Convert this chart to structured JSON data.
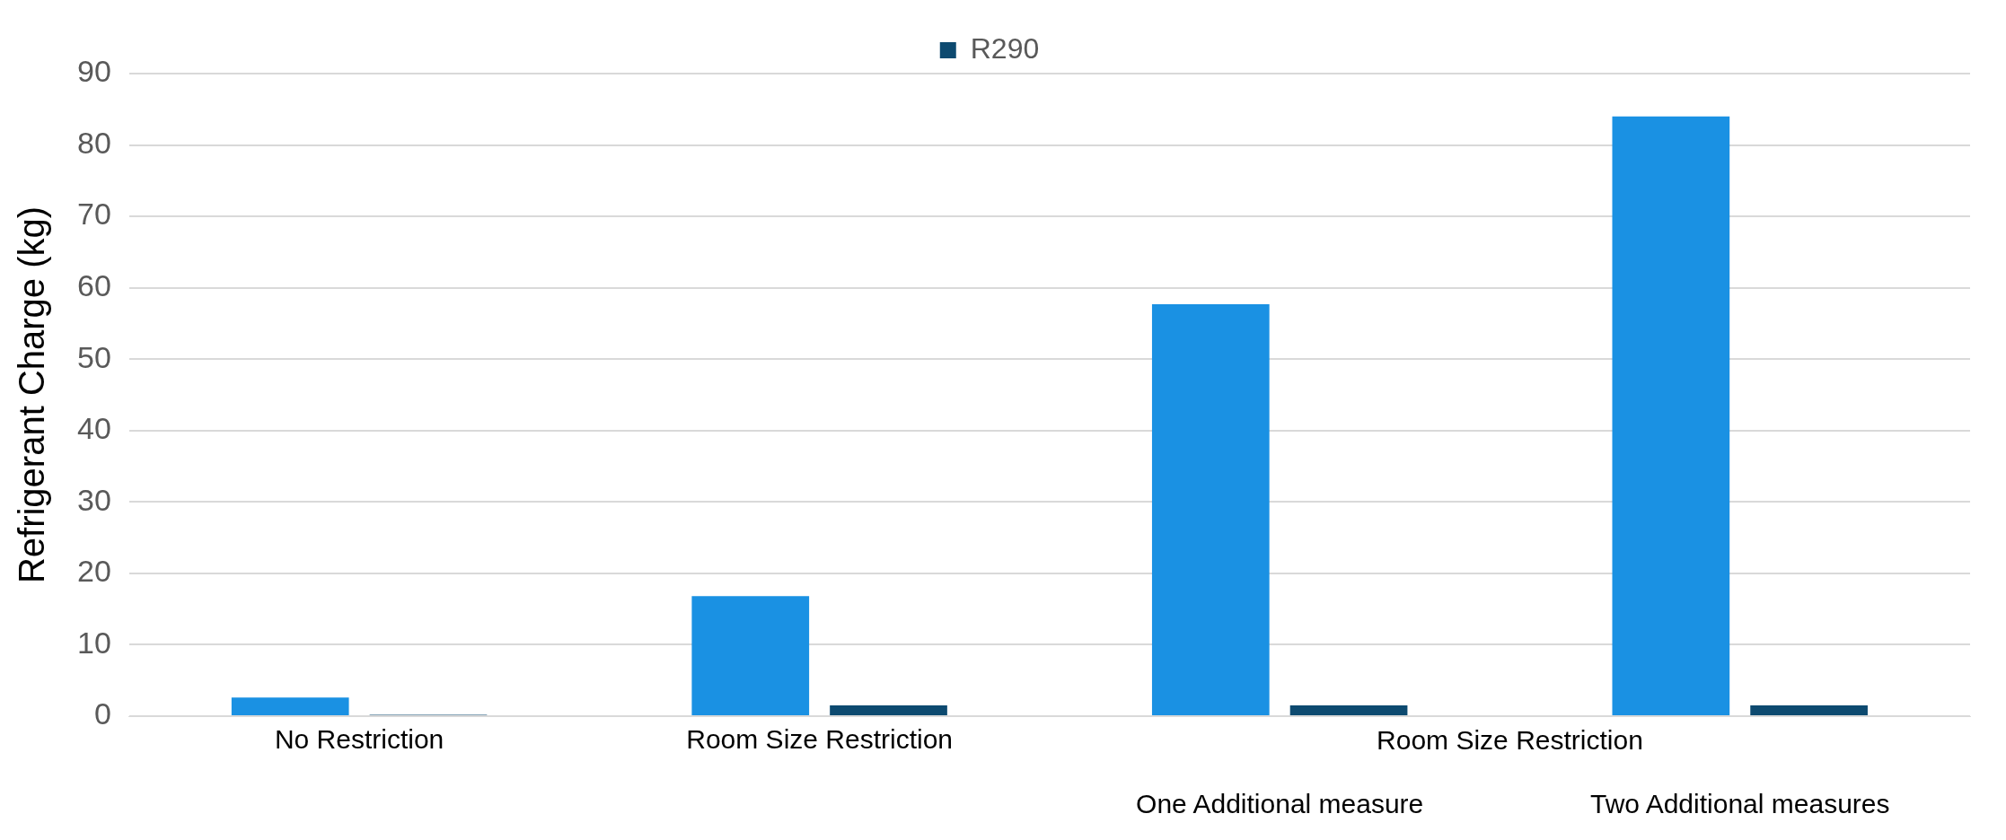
{
  "chart_data": {
    "type": "bar",
    "ylabel": "Refrigerant Charge (kg)",
    "categories": [
      "No Restriction",
      "Room Size Restriction",
      "One Additional measure",
      "Two Additional measures"
    ],
    "series": [
      {
        "color": "#1a91e3",
        "values": [
          2.6,
          16.8,
          57.7,
          84
        ]
      },
      {
        "name": "R290",
        "color": "#0d4a70",
        "values": [
          0.2,
          1.5,
          1.5,
          1.5
        ]
      }
    ],
    "ylim": [
      0,
      90
    ],
    "yticks": [
      0,
      10,
      20,
      30,
      40,
      50,
      60,
      70,
      80,
      90
    ],
    "grid": "y",
    "legend": "top",
    "annotations": [
      "Room Size Restriction"
    ]
  }
}
